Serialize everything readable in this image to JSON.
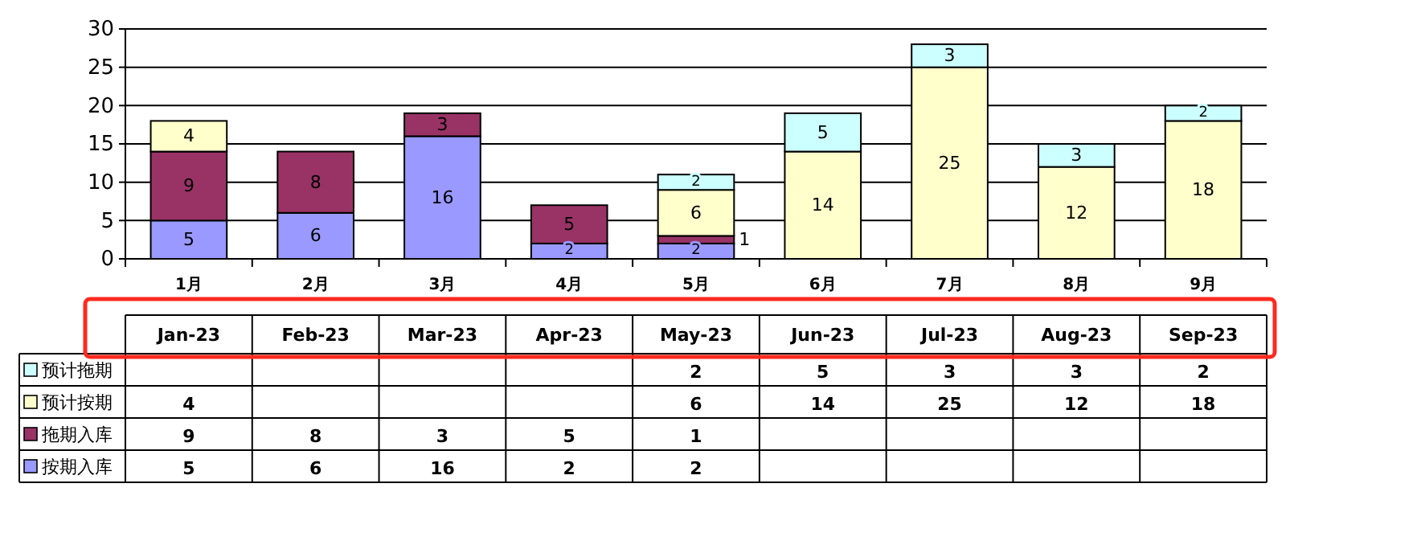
{
  "chart_data": {
    "type": "bar",
    "stacked": true,
    "categories": [
      "1月",
      "2月",
      "3月",
      "4月",
      "5月",
      "6月",
      "7月",
      "8月",
      "9月"
    ],
    "series": [
      {
        "name": "按期入库",
        "color": "#9999ff",
        "values": [
          5,
          6,
          16,
          2,
          2,
          null,
          null,
          null,
          null
        ]
      },
      {
        "name": "拖期入库",
        "color": "#993366",
        "values": [
          9,
          8,
          3,
          5,
          1,
          null,
          null,
          null,
          null
        ]
      },
      {
        "name": "预计按期",
        "color": "#ffffcc",
        "values": [
          4,
          null,
          null,
          null,
          6,
          14,
          25,
          12,
          18
        ]
      },
      {
        "name": "预计拖期",
        "color": "#ccffff",
        "values": [
          null,
          null,
          null,
          null,
          2,
          5,
          3,
          3,
          2
        ]
      }
    ],
    "ylim": [
      0,
      30
    ],
    "yticks": [
      0,
      5,
      10,
      15,
      20,
      25,
      30
    ],
    "grid": "y",
    "data_labels": true,
    "legend": "bottom",
    "annotations": [
      "Jan-23",
      "Feb-23",
      "Mar-23",
      "Apr-23",
      "May-23",
      "Jun-23",
      "Jul-23",
      "Aug-23",
      "Sep-23",
      "2",
      "5",
      "3",
      "3",
      "2",
      "4",
      "6",
      "14",
      "25",
      "12",
      "18",
      "9",
      "8",
      "3",
      "5",
      "1",
      "5",
      "6",
      "16",
      "2",
      "2"
    ]
  }
}
